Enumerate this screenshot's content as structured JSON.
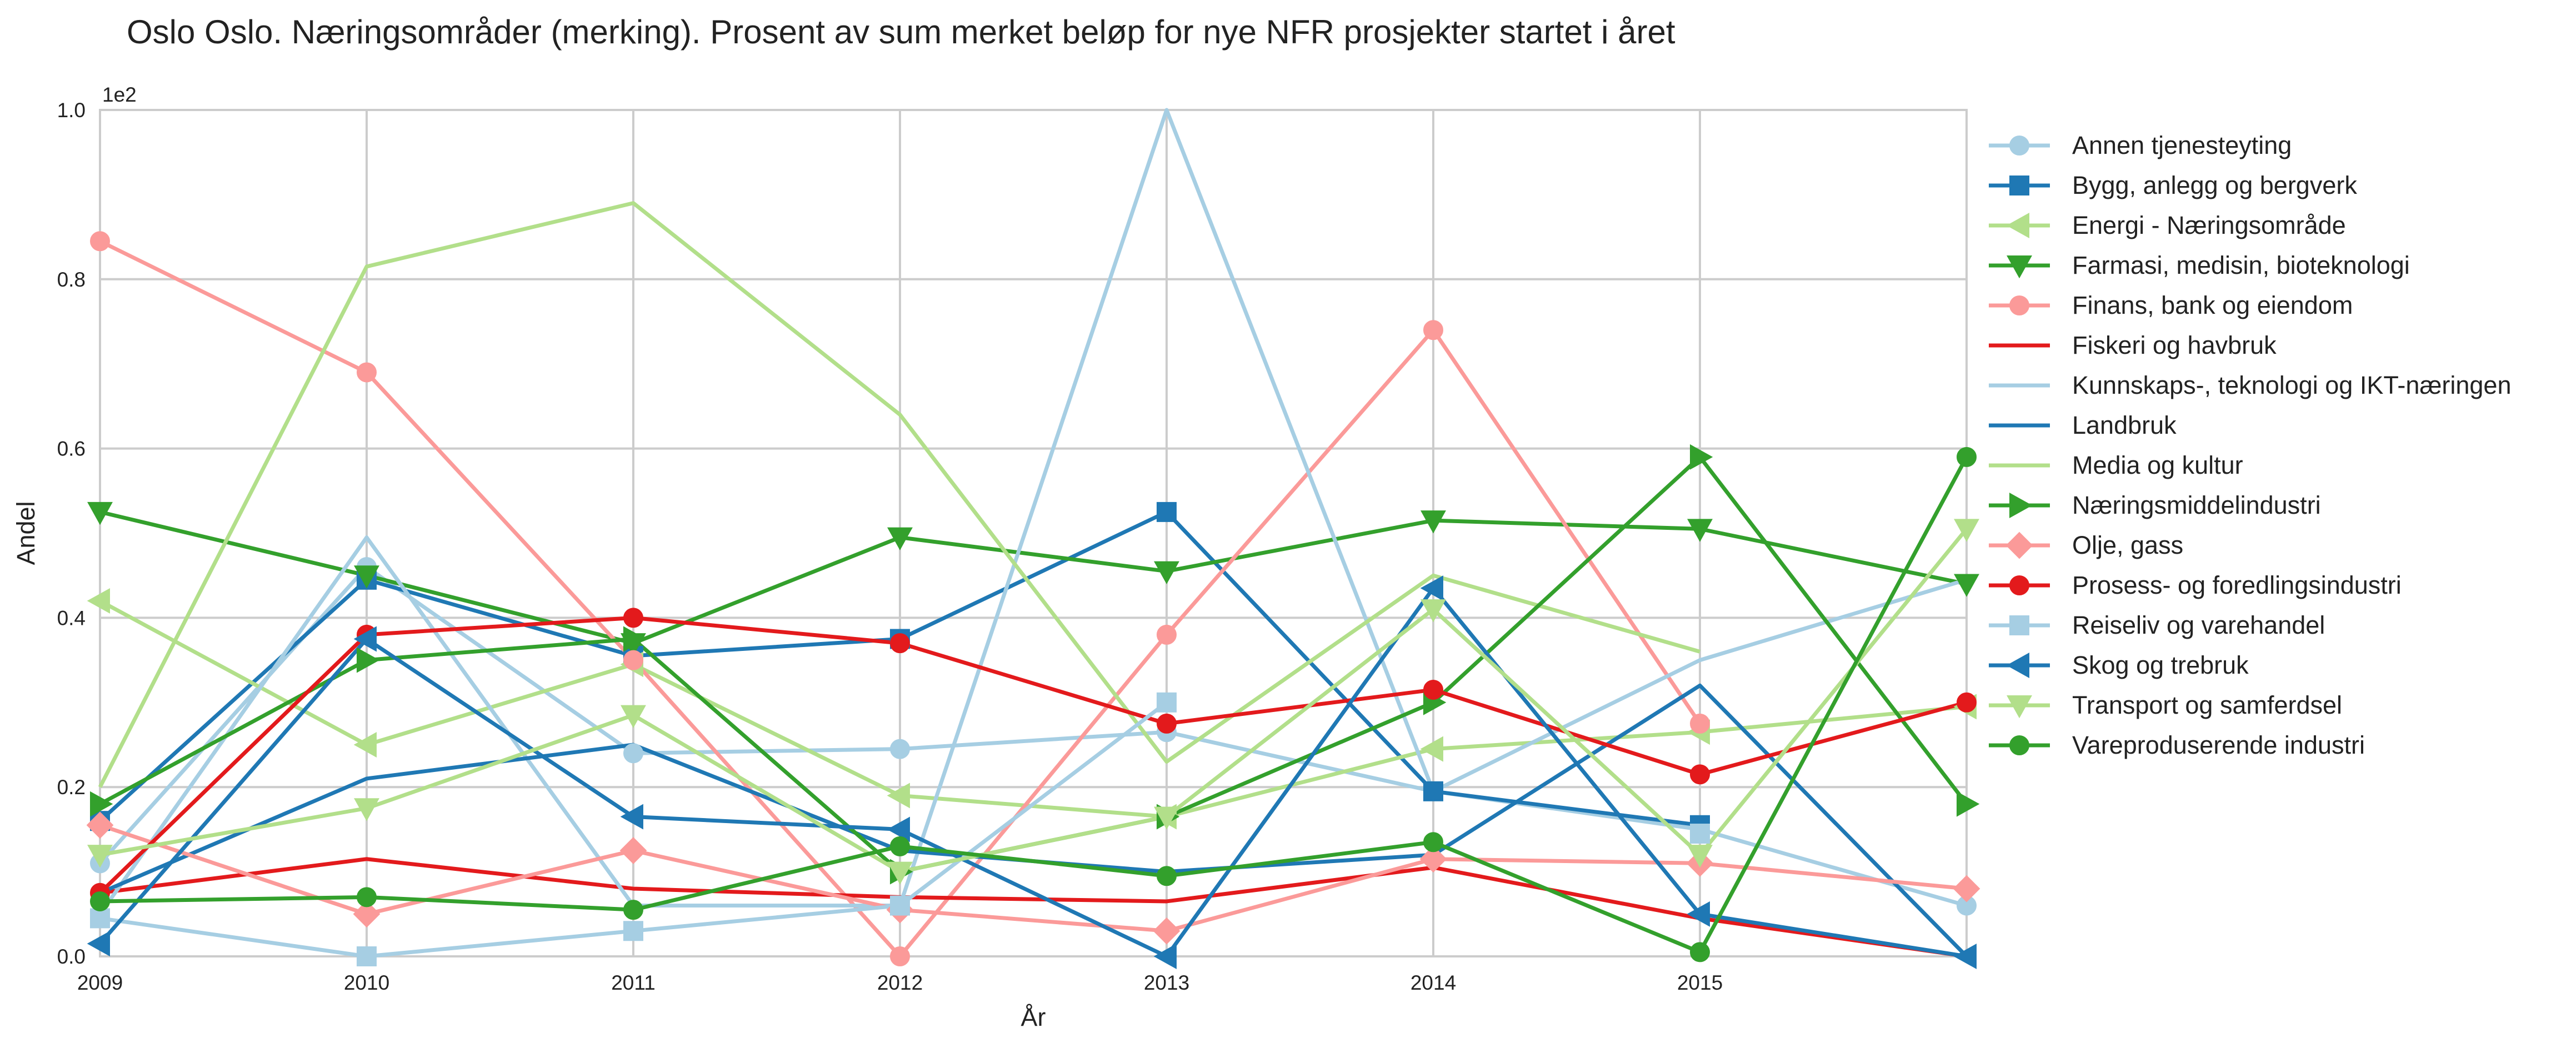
{
  "chart_data": {
    "type": "line",
    "title": "Oslo Oslo. Næringsområder (merking). Prosent av sum merket beløp for nye NFR prosjekter startet i året",
    "xlabel": "År",
    "ylabel": "Andel",
    "offset_text": "1e2",
    "x": [
      2009,
      2010,
      2011,
      2012,
      2013,
      2014,
      2015,
      2016
    ],
    "xticks": [
      2009,
      2010,
      2011,
      2012,
      2013,
      2014,
      2015
    ],
    "xtick_labels": [
      "2009",
      "2010",
      "2011",
      "2012",
      "2013",
      "2014",
      "2015"
    ],
    "xlim": [
      2009,
      2016
    ],
    "ylim": [
      0,
      1.0
    ],
    "yticks": [
      0.0,
      0.2,
      0.4,
      0.6,
      0.8,
      1.0
    ],
    "ytick_labels": [
      "0.0",
      "0.2",
      "0.4",
      "0.6",
      "0.8",
      "1.0"
    ],
    "grid": true,
    "legend_position": "right, outside",
    "series": [
      {
        "name": "Annen tjenesteyting",
        "color": "#a6cee3",
        "marker": "circle",
        "values": [
          0.11,
          0.46,
          0.24,
          0.245,
          0.265,
          0.195,
          0.15,
          0.06
        ]
      },
      {
        "name": "Bygg, anlegg og bergverk",
        "color": "#1f78b4",
        "marker": "square",
        "values": [
          0.16,
          0.445,
          0.355,
          0.375,
          0.525,
          0.195,
          0.155,
          null
        ]
      },
      {
        "name": "Energi - Næringsområde",
        "color": "#b2df8a",
        "marker": "triangle-left",
        "values": [
          0.42,
          0.25,
          0.345,
          0.19,
          0.165,
          0.245,
          0.265,
          0.295
        ]
      },
      {
        "name": "Farmasi, medisin, bioteknologi",
        "color": "#33a02c",
        "marker": "triangle-down",
        "values": [
          0.525,
          0.45,
          0.37,
          0.495,
          0.455,
          0.515,
          0.505,
          0.44
        ]
      },
      {
        "name": "Finans, bank og eiendom",
        "color": "#fb9a99",
        "marker": "circle",
        "values": [
          0.845,
          0.69,
          0.35,
          0.0,
          0.38,
          0.74,
          0.275,
          null
        ]
      },
      {
        "name": "Fiskeri og havbruk",
        "color": "#e31a1c",
        "marker": "none",
        "values": [
          0.075,
          0.115,
          0.08,
          0.07,
          0.065,
          0.105,
          0.045,
          0.0
        ]
      },
      {
        "name": "Kunnskaps-, teknologi og IKT-næringen",
        "color": "#a6cee3",
        "marker": "none",
        "values": [
          0.05,
          0.495,
          0.06,
          0.06,
          1.0,
          0.195,
          0.35,
          0.445
        ]
      },
      {
        "name": "Landbruk",
        "color": "#1f78b4",
        "marker": "none",
        "values": [
          0.075,
          0.21,
          0.25,
          0.125,
          0.1,
          0.12,
          0.32,
          0.0
        ]
      },
      {
        "name": "Media og kultur",
        "color": "#b2df8a",
        "marker": "none",
        "values": [
          0.2,
          0.815,
          0.89,
          0.64,
          0.23,
          0.45,
          0.36,
          null
        ]
      },
      {
        "name": "Næringsmiddelindustri",
        "color": "#33a02c",
        "marker": "triangle-right",
        "values": [
          0.18,
          0.35,
          0.375,
          0.1,
          0.165,
          0.3,
          0.59,
          0.18
        ]
      },
      {
        "name": "Olje, gass",
        "color": "#fb9a99",
        "marker": "diamond",
        "values": [
          0.155,
          0.05,
          0.125,
          0.055,
          0.03,
          0.115,
          0.11,
          0.08
        ]
      },
      {
        "name": "Prosess- og foredlingsindustri",
        "color": "#e31a1c",
        "marker": "circle",
        "values": [
          0.075,
          0.38,
          0.4,
          0.37,
          0.275,
          0.315,
          0.215,
          0.3
        ]
      },
      {
        "name": "Reiseliv og varehandel",
        "color": "#a6cee3",
        "marker": "square",
        "values": [
          0.045,
          0.0,
          0.03,
          0.06,
          0.3,
          null,
          0.145,
          null
        ]
      },
      {
        "name": "Skog og trebruk",
        "color": "#1f78b4",
        "marker": "triangle-left",
        "values": [
          0.015,
          0.375,
          0.165,
          0.15,
          0.0,
          0.435,
          0.05,
          0.0
        ]
      },
      {
        "name": "Transport og samferdsel",
        "color": "#b2df8a",
        "marker": "triangle-down",
        "values": [
          0.12,
          0.175,
          0.285,
          0.1,
          0.165,
          0.41,
          0.12,
          0.505
        ]
      },
      {
        "name": "Vareproduserende industri",
        "color": "#33a02c",
        "marker": "circle",
        "values": [
          0.065,
          0.07,
          0.055,
          0.13,
          0.095,
          0.135,
          0.005,
          0.59
        ]
      }
    ]
  }
}
